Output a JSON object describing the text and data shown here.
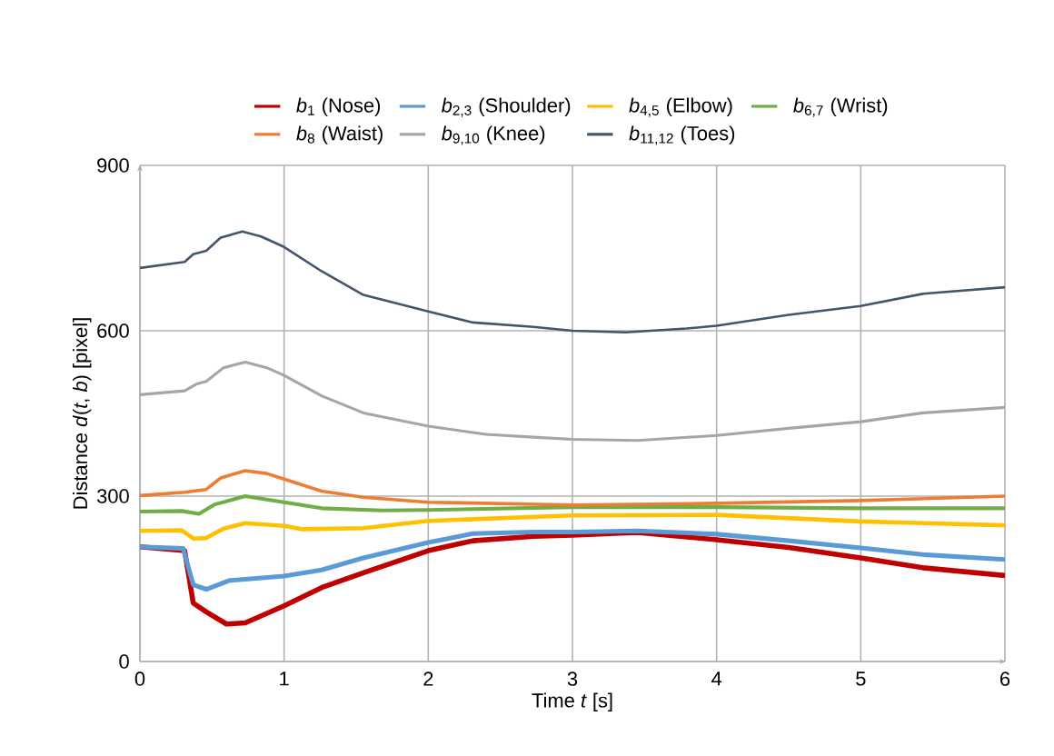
{
  "chart_data": {
    "type": "line",
    "xlabel": "Time *t* [s]",
    "ylabel": "Distance *d*(*t*, *b*) [pixel]",
    "xlim": [
      0,
      6
    ],
    "ylim": [
      0,
      900
    ],
    "xticks": [
      0,
      1,
      2,
      3,
      4,
      5,
      6
    ],
    "yticks": [
      0,
      300,
      600,
      900
    ],
    "grid": true,
    "legend": "top",
    "marker": "none",
    "line_style": "solid",
    "series": [
      {
        "name": "*b*$_{1}$ (Nose)",
        "color": "#c00000",
        "x": [
          0,
          0.31,
          0.37,
          0.46,
          0.6,
          0.73,
          1.0,
          1.26,
          1.55,
          2.0,
          2.31,
          2.73,
          3.0,
          3.45,
          4.0,
          4.5,
          5.0,
          5.43,
          6.0
        ],
        "values": [
          208,
          201,
          106,
          90,
          68,
          70,
          101,
          134,
          161,
          201,
          219,
          227,
          229,
          234,
          221,
          207,
          188,
          170,
          156
        ]
      },
      {
        "name": "*b*$_{2,3}$ (Shoulder)",
        "color": "#5b9bd5",
        "x": [
          0,
          0.3,
          0.37,
          0.46,
          0.62,
          1.0,
          1.26,
          1.55,
          2.0,
          2.31,
          2.73,
          3.0,
          3.45,
          4.0,
          4.5,
          5.0,
          5.43,
          6.0
        ],
        "values": [
          208,
          205,
          139,
          131,
          147,
          155,
          166,
          188,
          216,
          232,
          235,
          235,
          237,
          231,
          219,
          206,
          194,
          185
        ]
      },
      {
        "name": "*b*$_{4,5}$ (Elbow)",
        "color": "#ffc000",
        "x": [
          0,
          0.29,
          0.37,
          0.46,
          0.58,
          0.73,
          1.0,
          1.13,
          1.55,
          2.0,
          3.0,
          4.0,
          5.0,
          6.0
        ],
        "values": [
          237,
          238,
          223,
          224,
          241,
          251,
          246,
          240,
          242,
          255,
          265,
          266,
          254,
          247
        ]
      },
      {
        "name": "*b*$_{6,7}$ (Wrist)",
        "color": "#70ad47",
        "x": [
          0,
          0.29,
          0.41,
          0.52,
          0.73,
          1.0,
          1.26,
          1.68,
          2.0,
          3.0,
          4.0,
          5.0,
          6.0
        ],
        "values": [
          272,
          273,
          268,
          285,
          300,
          289,
          278,
          274,
          275,
          280,
          280,
          278,
          278
        ]
      },
      {
        "name": "*b*$_{8}$ (Waist)",
        "color": "#ed7d31",
        "x": [
          0,
          0.31,
          0.46,
          0.56,
          0.73,
          0.88,
          1.0,
          1.26,
          1.55,
          2.0,
          3.0,
          4.0,
          5.0,
          6.0
        ],
        "values": [
          301,
          307,
          312,
          333,
          346,
          341,
          331,
          309,
          298,
          289,
          284,
          287,
          292,
          300
        ]
      },
      {
        "name": "*b*$_{9,10}$ (Knee)",
        "color": "#a5a5a5",
        "x": [
          0,
          0.31,
          0.39,
          0.46,
          0.58,
          0.73,
          0.88,
          1.0,
          1.26,
          1.55,
          2.0,
          2.4,
          2.73,
          3.0,
          3.45,
          4.0,
          4.5,
          5.0,
          5.43,
          6.0
        ],
        "values": [
          484,
          491,
          503,
          508,
          533,
          543,
          533,
          519,
          482,
          451,
          427,
          412,
          407,
          403,
          401,
          410,
          423,
          435,
          451,
          461
        ]
      },
      {
        "name": "*b*$_{11,12}$ (Toes)",
        "color": "#44546a",
        "x": [
          0,
          0.31,
          0.37,
          0.46,
          0.56,
          0.71,
          0.84,
          1.0,
          1.26,
          1.55,
          2.0,
          2.31,
          2.73,
          3.0,
          3.37,
          3.79,
          4.0,
          4.5,
          5.0,
          5.43,
          6.0
        ],
        "values": [
          714,
          725,
          739,
          745,
          769,
          780,
          771,
          752,
          708,
          665,
          635,
          615,
          607,
          600,
          597,
          604,
          609,
          629,
          645,
          667,
          679
        ]
      }
    ]
  }
}
